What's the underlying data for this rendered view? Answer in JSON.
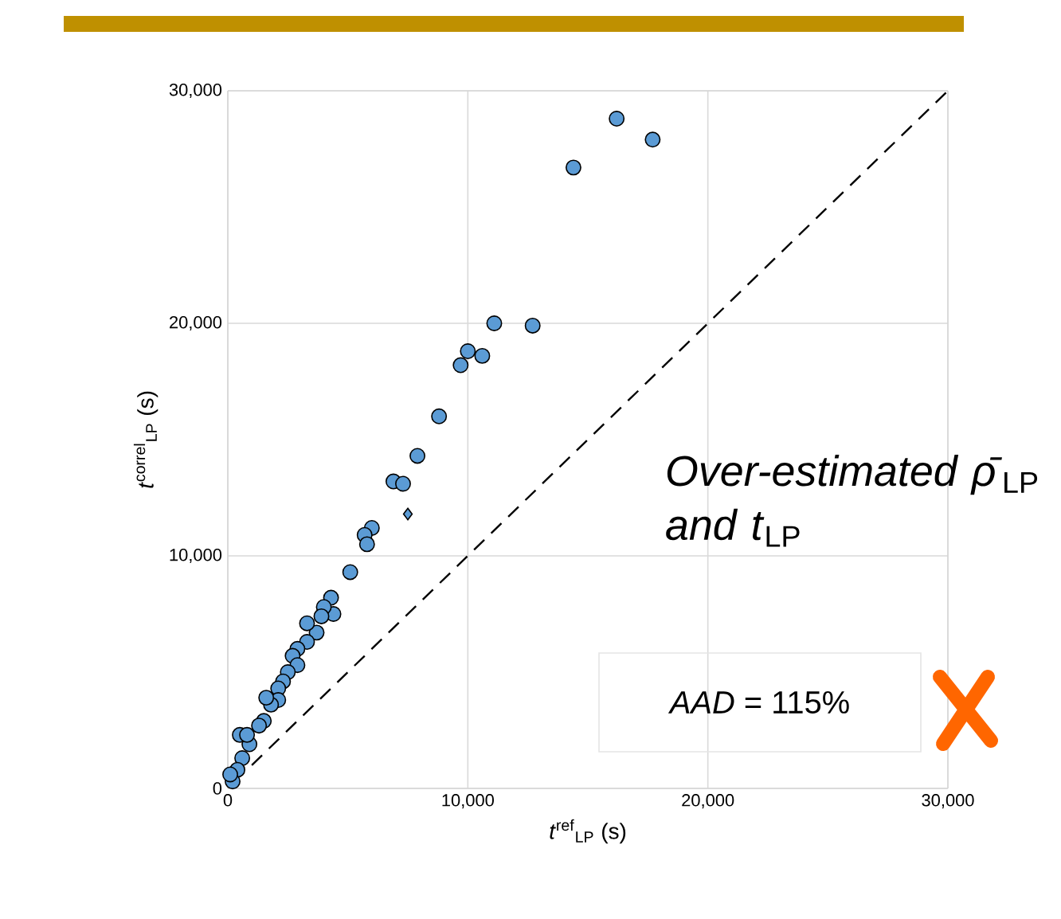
{
  "chart_data": {
    "type": "scatter",
    "xlabel": "*t*$^{ref}$$_{LP}$ (s)",
    "ylabel": "*t*$^{correl}$$_{LP}$ (s)",
    "xlim": [
      0,
      30000
    ],
    "ylim": [
      0,
      30000
    ],
    "xticks": [
      0,
      {
        "value": 10000,
        "label": "10,000"
      },
      {
        "value": 20000,
        "label": "20,000"
      },
      {
        "value": 30000,
        "label": "30,000"
      }
    ],
    "yticks": [
      0,
      {
        "value": 10000,
        "label": "10,000"
      },
      {
        "value": 20000,
        "label": "20,000"
      },
      {
        "value": 30000,
        "label": "30,000"
      }
    ],
    "grid": true,
    "annotations": [
      "*Over-estimated ρ̄*$_{LP}$ *and t*$_{LP}$",
      "*AAD* = 115%"
    ],
    "series": [
      {
        "marker": "circle",
        "color": "#5b9bd5",
        "x": [
          16200,
          17700,
          14400,
          11100,
          12700,
          10000,
          10600,
          9700,
          8800,
          7900,
          6900,
          7300,
          6000,
          5700,
          5800,
          5100,
          4300,
          4400,
          4000,
          3900,
          3700,
          3300,
          3300,
          2900,
          2700,
          2900,
          2500,
          2300,
          2100,
          2100,
          1800,
          1600,
          1500,
          900,
          500,
          600,
          400,
          200,
          100,
          1300,
          800
        ],
        "values": [
          28800,
          27900,
          26700,
          20000,
          19900,
          18800,
          18600,
          18200,
          16000,
          14300,
          13200,
          13100,
          11200,
          10900,
          10500,
          9300,
          8200,
          7500,
          7800,
          7400,
          6700,
          7100,
          6300,
          6000,
          5700,
          5300,
          5000,
          4600,
          4300,
          3800,
          3600,
          3900,
          2900,
          1900,
          2300,
          1300,
          800,
          300,
          600,
          2700,
          2300
        ]
      },
      {
        "marker": "diamond",
        "color": "#5b9bd5",
        "x": [
          7500
        ],
        "values": [
          11800
        ]
      },
      {
        "type": "line",
        "line_style": "dashed",
        "marker": "none",
        "color": "#000000",
        "x": [
          1000,
          30000
        ],
        "values": [
          1000,
          30000
        ]
      }
    ]
  }
}
